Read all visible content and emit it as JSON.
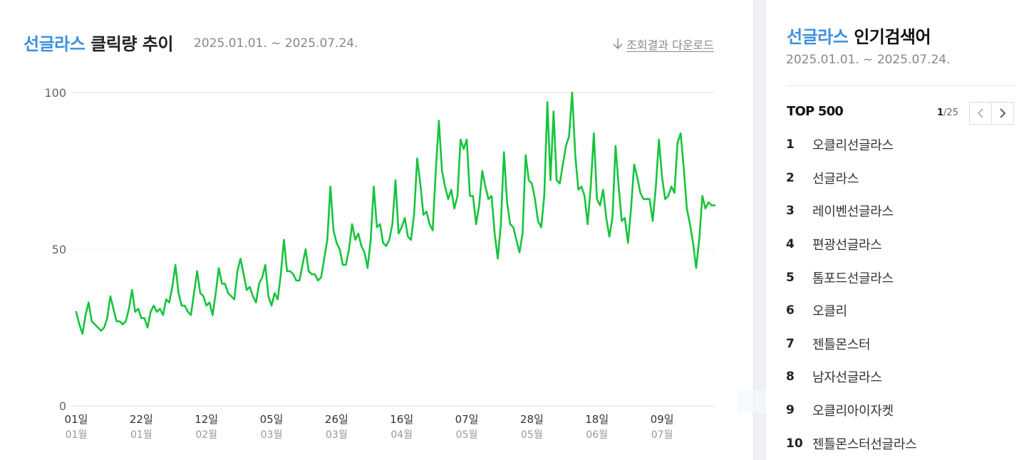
{
  "chart_header": {
    "keyword": "선글라스",
    "title_rest": "클릭량 추이",
    "period": "2025.01.01. ~ 2025.07.24.",
    "download_label": "조회결과 다운로드"
  },
  "colors": {
    "keyword_blue": "#3d8fdf",
    "line_green": "#16c43c",
    "axis_gray": "#666666"
  },
  "chart_data": {
    "type": "line",
    "title": "선글라스 클릭량 추이",
    "ylim": [
      0,
      100
    ],
    "y_ticks": [
      0,
      50,
      100
    ],
    "grid": true,
    "x_ticks": [
      {
        "index": 0,
        "day": "01일",
        "month": "01월"
      },
      {
        "index": 21,
        "day": "22일",
        "month": "01월"
      },
      {
        "index": 42,
        "day": "12일",
        "month": "02월"
      },
      {
        "index": 63,
        "day": "05일",
        "month": "03월"
      },
      {
        "index": 84,
        "day": "26일",
        "month": "03월"
      },
      {
        "index": 105,
        "day": "16일",
        "month": "04월"
      },
      {
        "index": 126,
        "day": "07일",
        "month": "05월"
      },
      {
        "index": 147,
        "day": "28일",
        "month": "05월"
      },
      {
        "index": 168,
        "day": "18일",
        "month": "06월"
      },
      {
        "index": 189,
        "day": "09일",
        "month": "07월"
      }
    ],
    "series": [
      {
        "values": [
          30,
          26,
          23,
          29,
          33,
          27,
          26,
          25,
          24,
          25,
          28,
          35,
          31,
          27,
          27,
          26,
          27,
          31,
          37,
          30,
          31,
          28,
          28,
          25,
          30,
          32,
          30,
          31,
          29,
          34,
          33,
          38,
          45,
          36,
          32,
          32,
          30,
          29,
          36,
          43,
          36,
          35,
          32,
          33,
          29,
          36,
          44,
          39,
          39,
          36,
          35,
          34,
          43,
          47,
          42,
          37,
          38,
          35,
          33,
          39,
          41,
          45,
          35,
          32,
          36,
          34,
          42,
          53,
          43,
          43,
          42,
          40,
          40,
          45,
          50,
          43,
          42,
          42,
          40,
          41,
          47,
          53,
          70,
          56,
          52,
          50,
          45,
          45,
          50,
          58,
          53,
          55,
          51,
          49,
          44,
          53,
          70,
          57,
          58,
          52,
          51,
          53,
          58,
          72,
          55,
          57,
          60,
          54,
          53,
          61,
          79,
          71,
          61,
          62,
          58,
          56,
          75,
          91,
          75,
          70,
          66,
          69,
          63,
          67,
          85,
          82,
          85,
          67,
          67,
          58,
          64,
          75,
          70,
          66,
          67,
          55,
          47,
          58,
          81,
          65,
          58,
          57,
          53,
          49,
          55,
          80,
          72,
          71,
          66,
          59,
          57,
          67,
          97,
          72,
          94,
          72,
          71,
          77,
          83,
          86,
          100,
          80,
          69,
          70,
          67,
          58,
          70,
          87,
          66,
          64,
          69,
          60,
          54,
          60,
          83,
          70,
          59,
          60,
          52,
          63,
          77,
          73,
          68,
          66,
          66,
          66,
          59,
          70,
          85,
          73,
          66,
          67,
          70,
          68,
          84,
          87,
          76,
          63,
          58,
          52,
          44,
          53,
          67,
          63,
          65,
          64,
          64
        ]
      }
    ]
  },
  "sidebar": {
    "keyword": "선글라스",
    "title_rest": "인기검색어",
    "period": "2025.01.01. ~ 2025.07.24.",
    "top_label": "TOP 500",
    "page_current": "1",
    "page_total": "/25",
    "items": [
      {
        "rank": "1",
        "text": "오클리선글라스"
      },
      {
        "rank": "2",
        "text": "선글라스"
      },
      {
        "rank": "3",
        "text": "레이벤선글라스"
      },
      {
        "rank": "4",
        "text": "편광선글라스"
      },
      {
        "rank": "5",
        "text": "톰포드선글라스"
      },
      {
        "rank": "6",
        "text": "오클리"
      },
      {
        "rank": "7",
        "text": "젠틀몬스터"
      },
      {
        "rank": "8",
        "text": "남자선글라스"
      },
      {
        "rank": "9",
        "text": "오클리아이자켓"
      },
      {
        "rank": "10",
        "text": "젠틀몬스터선글라스"
      }
    ]
  }
}
